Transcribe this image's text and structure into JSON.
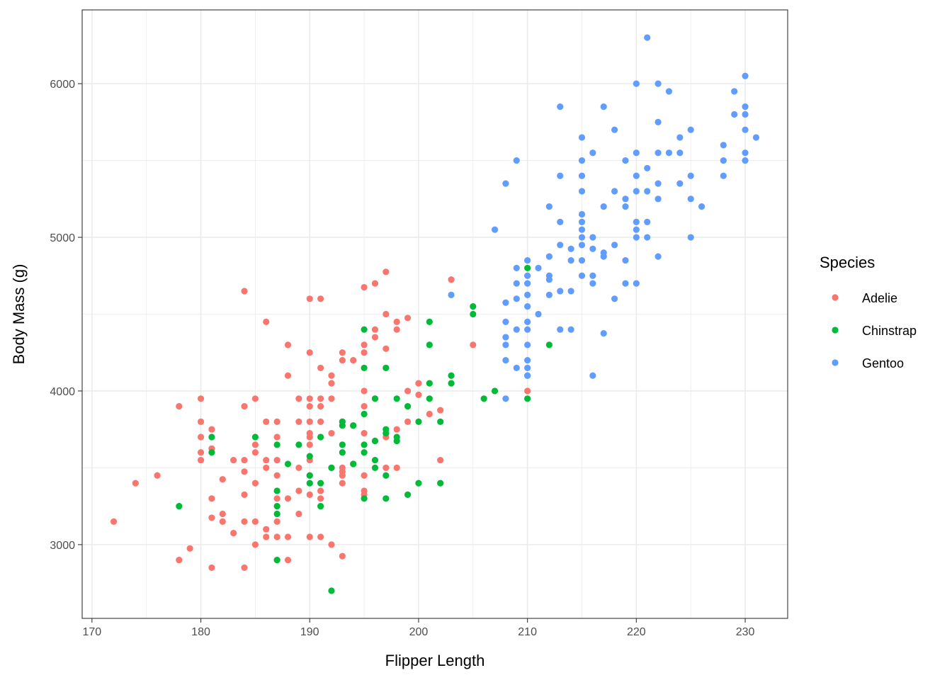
{
  "chart_data": {
    "type": "scatter",
    "xlabel": "Flipper Length",
    "ylabel": "Body Mass (g)",
    "xlim": [
      169.1,
      233.9
    ],
    "ylim": [
      2520,
      6480
    ],
    "xticks": [
      170,
      180,
      190,
      200,
      210,
      220,
      230
    ],
    "yticks": [
      3000,
      4000,
      5000,
      6000
    ],
    "x_tick_labels": [
      "170",
      "180",
      "190",
      "200",
      "210",
      "220",
      "230"
    ],
    "y_tick_labels": [
      "3000",
      "4000",
      "5000",
      "6000"
    ],
    "grid": true,
    "legend": {
      "title": "Species",
      "position": "right"
    },
    "series": [
      {
        "name": "Adelie",
        "color": "#F8766D",
        "points": [
          [
            172,
            3150
          ],
          [
            174,
            3400
          ],
          [
            176,
            3450
          ],
          [
            178,
            3900
          ],
          [
            178,
            2900
          ],
          [
            179,
            2975
          ],
          [
            180,
            3950
          ],
          [
            180,
            3800
          ],
          [
            180,
            3700
          ],
          [
            180,
            3600
          ],
          [
            180,
            3550
          ],
          [
            181,
            3750
          ],
          [
            181,
            3625
          ],
          [
            181,
            3300
          ],
          [
            181,
            3175
          ],
          [
            181,
            2850
          ],
          [
            182,
            3425
          ],
          [
            182,
            3200
          ],
          [
            182,
            3150
          ],
          [
            183,
            3550
          ],
          [
            183,
            3075
          ],
          [
            184,
            4650
          ],
          [
            184,
            3900
          ],
          [
            184,
            3550
          ],
          [
            184,
            3475
          ],
          [
            184,
            3325
          ],
          [
            184,
            3150
          ],
          [
            184,
            2850
          ],
          [
            185,
            3950
          ],
          [
            185,
            3650
          ],
          [
            185,
            3600
          ],
          [
            185,
            3400
          ],
          [
            185,
            3150
          ],
          [
            185,
            3000
          ],
          [
            186,
            4450
          ],
          [
            186,
            3800
          ],
          [
            186,
            3550
          ],
          [
            186,
            3500
          ],
          [
            186,
            3100
          ],
          [
            186,
            3050
          ],
          [
            187,
            3800
          ],
          [
            187,
            3700
          ],
          [
            187,
            3550
          ],
          [
            187,
            3450
          ],
          [
            187,
            3300
          ],
          [
            187,
            3150
          ],
          [
            187,
            3050
          ],
          [
            187,
            2900
          ],
          [
            188,
            4300
          ],
          [
            188,
            4100
          ],
          [
            188,
            3300
          ],
          [
            188,
            3050
          ],
          [
            188,
            2900
          ],
          [
            189,
            3950
          ],
          [
            189,
            3800
          ],
          [
            189,
            3500
          ],
          [
            189,
            3350
          ],
          [
            189,
            3200
          ],
          [
            190,
            4600
          ],
          [
            190,
            4250
          ],
          [
            190,
            3950
          ],
          [
            190,
            3900
          ],
          [
            190,
            3800
          ],
          [
            190,
            3725
          ],
          [
            190,
            3700
          ],
          [
            190,
            3650
          ],
          [
            190,
            3550
          ],
          [
            190,
            3450
          ],
          [
            190,
            3325
          ],
          [
            190,
            3050
          ],
          [
            191,
            4600
          ],
          [
            191,
            4150
          ],
          [
            191,
            3950
          ],
          [
            191,
            3900
          ],
          [
            191,
            3800
          ],
          [
            191,
            3350
          ],
          [
            191,
            3300
          ],
          [
            191,
            3050
          ],
          [
            192,
            4100
          ],
          [
            192,
            4050
          ],
          [
            192,
            3950
          ],
          [
            192,
            3725
          ],
          [
            192,
            3500
          ],
          [
            192,
            3000
          ],
          [
            193,
            4250
          ],
          [
            193,
            4200
          ],
          [
            193,
            3800
          ],
          [
            193,
            3500
          ],
          [
            193,
            3475
          ],
          [
            193,
            3450
          ],
          [
            193,
            3400
          ],
          [
            193,
            2925
          ],
          [
            194,
            4200
          ],
          [
            194,
            3775
          ],
          [
            194,
            3525
          ],
          [
            195,
            4675
          ],
          [
            195,
            4300
          ],
          [
            195,
            4250
          ],
          [
            195,
            4000
          ],
          [
            195,
            3900
          ],
          [
            195,
            3725
          ],
          [
            195,
            3450
          ],
          [
            195,
            3350
          ],
          [
            195,
            3325
          ],
          [
            196,
            4700
          ],
          [
            196,
            4400
          ],
          [
            196,
            4350
          ],
          [
            196,
            3950
          ],
          [
            196,
            3675
          ],
          [
            197,
            4775
          ],
          [
            197,
            4500
          ],
          [
            197,
            4275
          ],
          [
            197,
            4150
          ],
          [
            197,
            3700
          ],
          [
            197,
            3500
          ],
          [
            198,
            4450
          ],
          [
            198,
            4400
          ],
          [
            198,
            3750
          ],
          [
            198,
            3500
          ],
          [
            199,
            4475
          ],
          [
            199,
            4000
          ],
          [
            199,
            3800
          ],
          [
            200,
            4050
          ],
          [
            200,
            3975
          ],
          [
            201,
            3850
          ],
          [
            202,
            3875
          ],
          [
            202,
            3550
          ],
          [
            203,
            4725
          ],
          [
            205,
            4300
          ],
          [
            210,
            4000
          ]
        ]
      },
      {
        "name": "Chinstrap",
        "color": "#00BA38",
        "points": [
          [
            178,
            3250
          ],
          [
            181,
            3700
          ],
          [
            181,
            3600
          ],
          [
            185,
            3700
          ],
          [
            187,
            3650
          ],
          [
            187,
            3350
          ],
          [
            187,
            3250
          ],
          [
            187,
            3200
          ],
          [
            187,
            2900
          ],
          [
            188,
            3525
          ],
          [
            189,
            3650
          ],
          [
            190,
            3575
          ],
          [
            190,
            3450
          ],
          [
            190,
            3400
          ],
          [
            191,
            3700
          ],
          [
            191,
            3400
          ],
          [
            191,
            3250
          ],
          [
            192,
            3500
          ],
          [
            192,
            2700
          ],
          [
            193,
            3800
          ],
          [
            193,
            3775
          ],
          [
            193,
            3650
          ],
          [
            193,
            3600
          ],
          [
            194,
            3775
          ],
          [
            194,
            3525
          ],
          [
            195,
            4400
          ],
          [
            195,
            4150
          ],
          [
            195,
            3850
          ],
          [
            195,
            3650
          ],
          [
            195,
            3600
          ],
          [
            195,
            3300
          ],
          [
            196,
            3950
          ],
          [
            196,
            3675
          ],
          [
            196,
            3550
          ],
          [
            196,
            3500
          ],
          [
            197,
            4150
          ],
          [
            197,
            3750
          ],
          [
            197,
            3725
          ],
          [
            197,
            3450
          ],
          [
            197,
            3300
          ],
          [
            198,
            3950
          ],
          [
            198,
            3700
          ],
          [
            198,
            3675
          ],
          [
            199,
            3900
          ],
          [
            199,
            3325
          ],
          [
            200,
            3800
          ],
          [
            200,
            3400
          ],
          [
            201,
            4450
          ],
          [
            201,
            4300
          ],
          [
            201,
            4050
          ],
          [
            201,
            3950
          ],
          [
            202,
            3800
          ],
          [
            202,
            3400
          ],
          [
            203,
            4100
          ],
          [
            203,
            4050
          ],
          [
            205,
            4550
          ],
          [
            205,
            4500
          ],
          [
            206,
            3950
          ],
          [
            207,
            4000
          ],
          [
            210,
            4800
          ],
          [
            210,
            4100
          ],
          [
            210,
            3950
          ],
          [
            212,
            4300
          ]
        ]
      },
      {
        "name": "Gentoo",
        "color": "#619CFF",
        "points": [
          [
            203,
            4625
          ],
          [
            207,
            5050
          ],
          [
            208,
            5350
          ],
          [
            208,
            4575
          ],
          [
            208,
            4450
          ],
          [
            208,
            4350
          ],
          [
            208,
            4300
          ],
          [
            208,
            4200
          ],
          [
            208,
            3950
          ],
          [
            209,
            5500
          ],
          [
            209,
            4800
          ],
          [
            209,
            4700
          ],
          [
            209,
            4600
          ],
          [
            209,
            4400
          ],
          [
            209,
            4150
          ],
          [
            210,
            4850
          ],
          [
            210,
            4750
          ],
          [
            210,
            4700
          ],
          [
            210,
            4625
          ],
          [
            210,
            4550
          ],
          [
            210,
            4450
          ],
          [
            210,
            4400
          ],
          [
            210,
            4300
          ],
          [
            210,
            4200
          ],
          [
            210,
            4150
          ],
          [
            210,
            4100
          ],
          [
            211,
            4800
          ],
          [
            211,
            4500
          ],
          [
            212,
            5200
          ],
          [
            212,
            4875
          ],
          [
            212,
            4750
          ],
          [
            212,
            4725
          ],
          [
            212,
            4625
          ],
          [
            213,
            5850
          ],
          [
            213,
            5400
          ],
          [
            213,
            5100
          ],
          [
            213,
            4950
          ],
          [
            213,
            4650
          ],
          [
            213,
            4400
          ],
          [
            214,
            4925
          ],
          [
            214,
            4850
          ],
          [
            214,
            4650
          ],
          [
            214,
            4400
          ],
          [
            215,
            5650
          ],
          [
            215,
            5500
          ],
          [
            215,
            5400
          ],
          [
            215,
            5300
          ],
          [
            215,
            5150
          ],
          [
            215,
            5100
          ],
          [
            215,
            5050
          ],
          [
            215,
            5000
          ],
          [
            215,
            4950
          ],
          [
            215,
            4850
          ],
          [
            215,
            4750
          ],
          [
            216,
            5550
          ],
          [
            216,
            5000
          ],
          [
            216,
            4925
          ],
          [
            216,
            4750
          ],
          [
            216,
            4700
          ],
          [
            216,
            4100
          ],
          [
            217,
            5850
          ],
          [
            217,
            5200
          ],
          [
            217,
            4900
          ],
          [
            217,
            4875
          ],
          [
            217,
            4375
          ],
          [
            218,
            5700
          ],
          [
            218,
            5300
          ],
          [
            218,
            4950
          ],
          [
            218,
            4600
          ],
          [
            219,
            5500
          ],
          [
            219,
            5250
          ],
          [
            219,
            5200
          ],
          [
            219,
            4850
          ],
          [
            219,
            4700
          ],
          [
            220,
            6000
          ],
          [
            220,
            5550
          ],
          [
            220,
            5400
          ],
          [
            220,
            5300
          ],
          [
            220,
            5100
          ],
          [
            220,
            5050
          ],
          [
            220,
            5000
          ],
          [
            220,
            4700
          ],
          [
            221,
            6300
          ],
          [
            221,
            5450
          ],
          [
            221,
            5300
          ],
          [
            221,
            5100
          ],
          [
            221,
            5000
          ],
          [
            222,
            6000
          ],
          [
            222,
            5750
          ],
          [
            222,
            5550
          ],
          [
            222,
            5350
          ],
          [
            222,
            5250
          ],
          [
            222,
            4875
          ],
          [
            223,
            5950
          ],
          [
            223,
            5550
          ],
          [
            224,
            5650
          ],
          [
            224,
            5550
          ],
          [
            224,
            5350
          ],
          [
            225,
            5700
          ],
          [
            225,
            5400
          ],
          [
            225,
            5250
          ],
          [
            225,
            5000
          ],
          [
            226,
            5200
          ],
          [
            228,
            5600
          ],
          [
            228,
            5500
          ],
          [
            228,
            5400
          ],
          [
            229,
            5950
          ],
          [
            229,
            5800
          ],
          [
            230,
            6050
          ],
          [
            230,
            5850
          ],
          [
            230,
            5800
          ],
          [
            230,
            5700
          ],
          [
            230,
            5550
          ],
          [
            230,
            5500
          ],
          [
            231,
            5650
          ]
        ]
      }
    ]
  }
}
